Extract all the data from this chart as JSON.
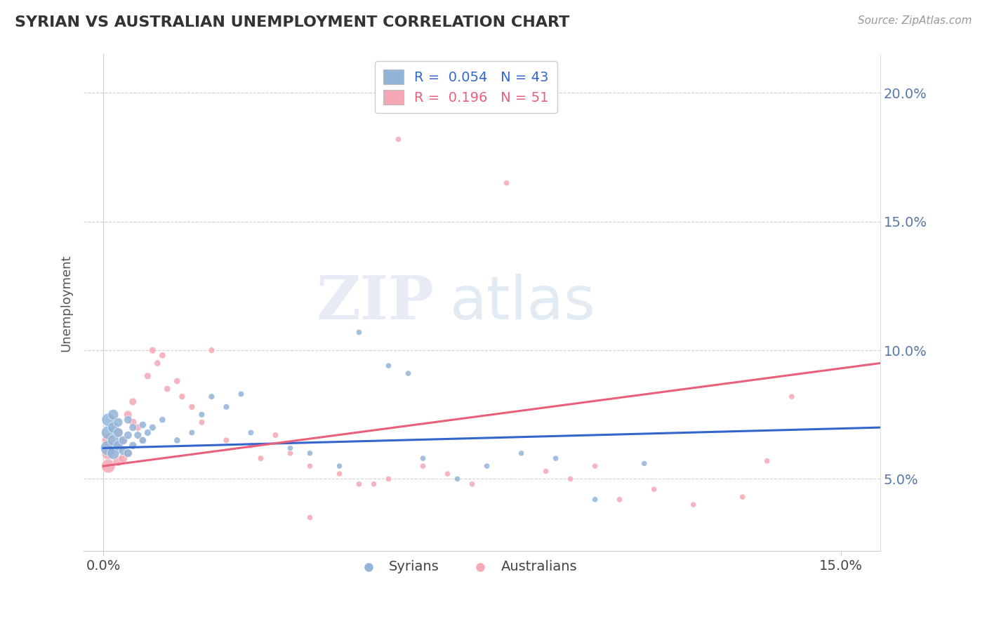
{
  "title": "SYRIAN VS AUSTRALIAN UNEMPLOYMENT CORRELATION CHART",
  "source": "Source: ZipAtlas.com",
  "legend_blue_label": "R =  0.054   N = 43",
  "legend_pink_label": "R =  0.196   N = 51",
  "legend_syrians": "Syrians",
  "legend_australians": "Australians",
  "blue_color": "#92B4D8",
  "pink_color": "#F4A7B4",
  "trend_blue": "#3366CC",
  "trend_pink": "#E8607A",
  "xmin": -0.004,
  "xmax": 0.158,
  "ymin": 0.022,
  "ymax": 0.215,
  "ytick_vals": [
    0.05,
    0.1,
    0.15,
    0.2
  ],
  "ytick_labels": [
    "5.0%",
    "10.0%",
    "15.0%",
    "20.0%"
  ],
  "xtick_vals": [
    0.0,
    0.15
  ],
  "xtick_labels": [
    "0.0%",
    "15.0%"
  ],
  "blue_x": [
    0.001,
    0.001,
    0.001,
    0.002,
    0.002,
    0.002,
    0.002,
    0.003,
    0.003,
    0.003,
    0.004,
    0.004,
    0.005,
    0.005,
    0.005,
    0.006,
    0.006,
    0.007,
    0.008,
    0.008,
    0.009,
    0.01,
    0.012,
    0.015,
    0.018,
    0.02,
    0.022,
    0.025,
    0.028,
    0.03,
    0.038,
    0.042,
    0.048,
    0.052,
    0.058,
    0.062,
    0.065,
    0.072,
    0.078,
    0.085,
    0.092,
    0.1,
    0.11
  ],
  "blue_y": [
    0.062,
    0.068,
    0.073,
    0.06,
    0.065,
    0.07,
    0.075,
    0.063,
    0.068,
    0.072,
    0.061,
    0.065,
    0.06,
    0.067,
    0.073,
    0.063,
    0.07,
    0.067,
    0.065,
    0.071,
    0.068,
    0.07,
    0.073,
    0.065,
    0.068,
    0.075,
    0.082,
    0.078,
    0.083,
    0.068,
    0.062,
    0.06,
    0.055,
    0.107,
    0.094,
    0.091,
    0.058,
    0.05,
    0.055,
    0.06,
    0.058,
    0.042,
    0.056
  ],
  "blue_sizes": [
    250,
    200,
    180,
    160,
    140,
    130,
    120,
    110,
    100,
    90,
    85,
    80,
    75,
    70,
    70,
    65,
    60,
    60,
    55,
    55,
    50,
    50,
    45,
    45,
    40,
    40,
    40,
    40,
    38,
    38,
    35,
    35,
    35,
    35,
    35,
    35,
    35,
    35,
    35,
    35,
    35,
    35,
    35
  ],
  "pink_x": [
    0.001,
    0.001,
    0.001,
    0.002,
    0.002,
    0.003,
    0.003,
    0.003,
    0.004,
    0.004,
    0.005,
    0.005,
    0.006,
    0.006,
    0.007,
    0.008,
    0.009,
    0.01,
    0.011,
    0.012,
    0.013,
    0.015,
    0.016,
    0.018,
    0.02,
    0.022,
    0.025,
    0.03,
    0.032,
    0.035,
    0.038,
    0.042,
    0.048,
    0.052,
    0.058,
    0.06,
    0.065,
    0.07,
    0.075,
    0.082,
    0.09,
    0.095,
    0.1,
    0.105,
    0.112,
    0.12,
    0.13,
    0.135,
    0.14,
    0.042,
    0.055
  ],
  "pink_y": [
    0.055,
    0.06,
    0.065,
    0.063,
    0.07,
    0.057,
    0.062,
    0.068,
    0.058,
    0.065,
    0.06,
    0.075,
    0.072,
    0.08,
    0.07,
    0.065,
    0.09,
    0.1,
    0.095,
    0.098,
    0.085,
    0.088,
    0.082,
    0.078,
    0.072,
    0.1,
    0.065,
    0.063,
    0.058,
    0.067,
    0.06,
    0.055,
    0.052,
    0.048,
    0.05,
    0.182,
    0.055,
    0.052,
    0.048,
    0.165,
    0.053,
    0.05,
    0.055,
    0.042,
    0.046,
    0.04,
    0.043,
    0.057,
    0.082,
    0.035,
    0.048
  ],
  "pink_sizes": [
    200,
    180,
    160,
    140,
    120,
    110,
    100,
    90,
    85,
    80,
    75,
    70,
    65,
    60,
    55,
    55,
    50,
    50,
    45,
    45,
    45,
    45,
    42,
    42,
    40,
    40,
    40,
    38,
    38,
    38,
    35,
    35,
    35,
    35,
    35,
    35,
    35,
    35,
    35,
    35,
    35,
    35,
    35,
    35,
    35,
    35,
    35,
    35,
    35,
    35,
    35
  ]
}
